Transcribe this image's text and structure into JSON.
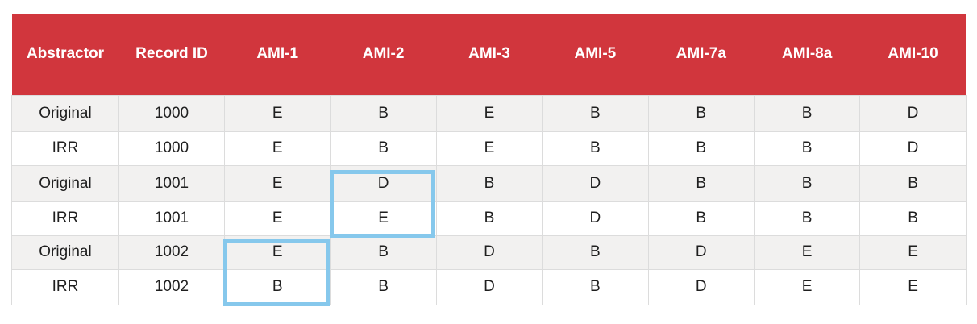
{
  "table": {
    "headers": [
      "Abstractor",
      "Record ID",
      "AMI-1",
      "AMI-2",
      "AMI-3",
      "AMI-5",
      "AMI-7a",
      "AMI-8a",
      "AMI-10"
    ],
    "rows": [
      [
        "Original",
        "1000",
        "E",
        "B",
        "E",
        "B",
        "B",
        "B",
        "D"
      ],
      [
        "IRR",
        "1000",
        "E",
        "B",
        "E",
        "B",
        "B",
        "B",
        "D"
      ],
      [
        "Original",
        "1001",
        "E",
        "D",
        "B",
        "D",
        "B",
        "B",
        "B"
      ],
      [
        "IRR",
        "1001",
        "E",
        "E",
        "B",
        "D",
        "B",
        "B",
        "B"
      ],
      [
        "Original",
        "1002",
        "E",
        "B",
        "D",
        "B",
        "D",
        "E",
        "E"
      ],
      [
        "IRR",
        "1002",
        "B",
        "B",
        "D",
        "B",
        "D",
        "E",
        "E"
      ]
    ]
  },
  "colors": {
    "header_bg": "#d1363d",
    "header_text": "#ffffff",
    "row_shaded": "#f2f1f0",
    "highlight": "#86c8ec"
  }
}
